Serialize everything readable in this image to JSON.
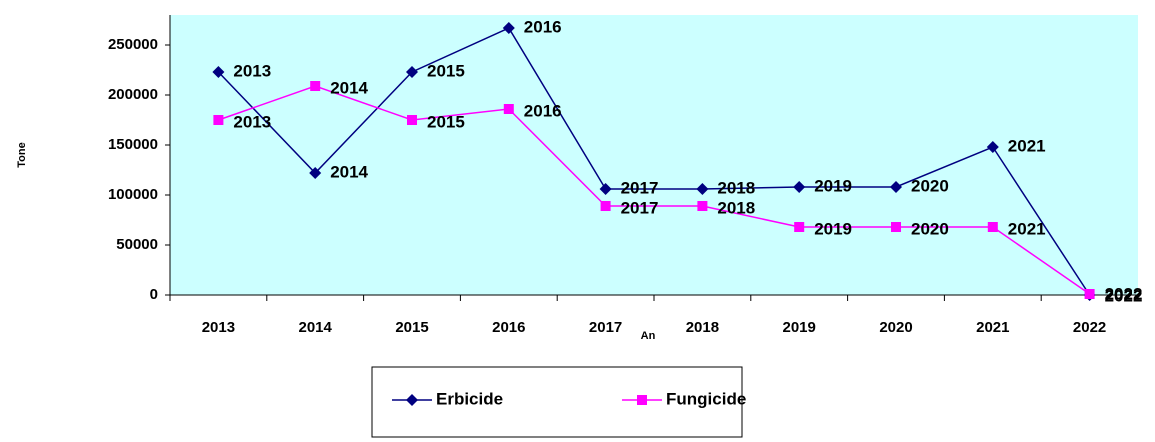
{
  "chart_data": {
    "type": "line",
    "categories": [
      "2013",
      "2014",
      "2015",
      "2016",
      "2017",
      "2018",
      "2019",
      "2020",
      "2021",
      "2022"
    ],
    "series": [
      {
        "name": "Erbicide",
        "color": "#000080",
        "marker": "diamond",
        "values": [
          223000,
          122000,
          223000,
          267000,
          106000,
          106000,
          108000,
          108000,
          148000,
          0
        ]
      },
      {
        "name": "Fungicide",
        "color": "#ff00ff",
        "marker": "square",
        "values": [
          175000,
          209000,
          175000,
          186000,
          89000,
          89000,
          68000,
          68000,
          68000,
          1000
        ]
      }
    ],
    "x_label": "An",
    "y_label": "Tone",
    "ylim": [
      0,
      280000
    ],
    "yticks": [
      0,
      50000,
      100000,
      150000,
      200000,
      250000
    ],
    "grid": false,
    "legend": "bottom",
    "plot_background": "#ccffff"
  }
}
